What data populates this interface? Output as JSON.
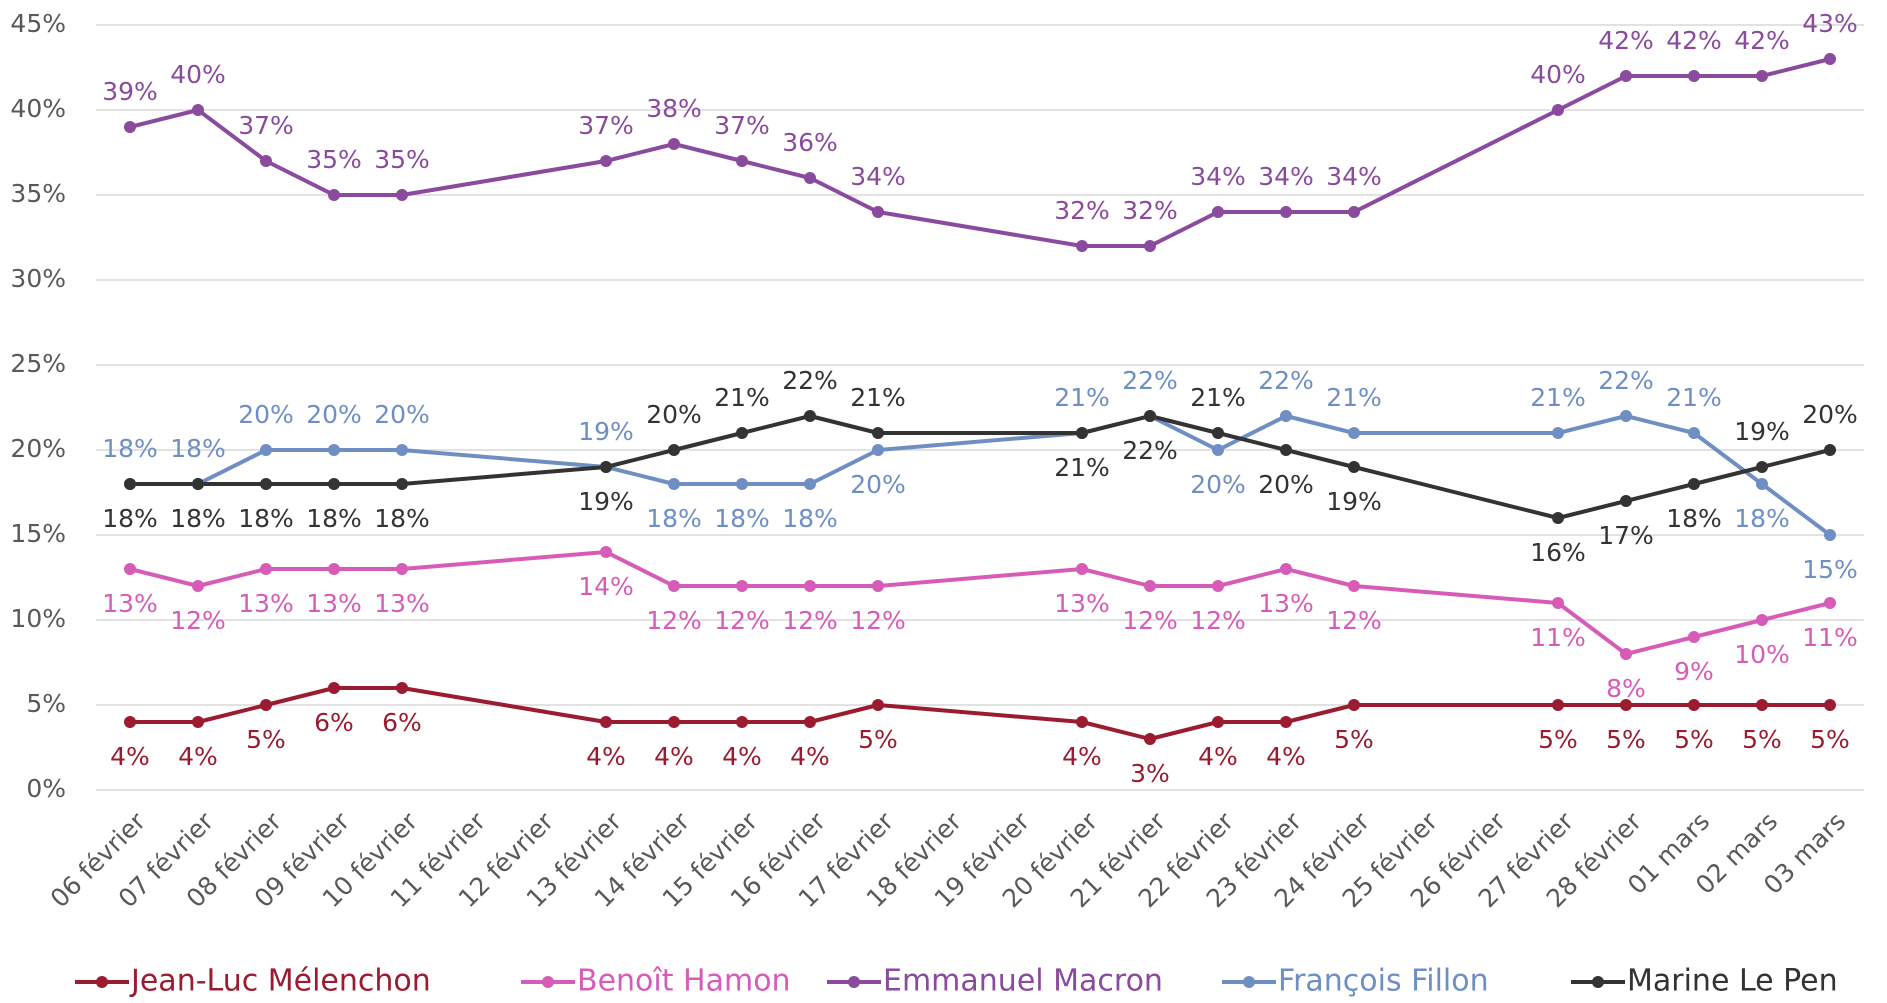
{
  "chart_data": {
    "type": "line",
    "categories": [
      "06 février",
      "07 février",
      "08 février",
      "09 février",
      "10 février",
      "11 février",
      "12 février",
      "13 février",
      "14 février",
      "15 février",
      "16 février",
      "17 février",
      "18 février",
      "19 février",
      "20 février",
      "21 février",
      "22 février",
      "23 février",
      "24 février",
      "25 février",
      "26 février",
      "27 février",
      "28 février",
      "01 mars",
      "02 mars",
      "03 mars"
    ],
    "series": [
      {
        "name": "Jean-Luc Mélenchon",
        "color": "#9b1b30",
        "values": [
          4,
          4,
          5,
          6,
          6,
          null,
          null,
          4,
          4,
          4,
          4,
          5,
          null,
          null,
          4,
          3,
          4,
          4,
          5,
          null,
          null,
          5,
          5,
          5,
          5,
          5
        ],
        "value_labels": [
          "4%",
          "4%",
          "5%",
          "6%",
          "6%",
          null,
          null,
          "4%",
          "4%",
          "4%",
          "4%",
          "5%",
          null,
          null,
          "4%",
          "3%",
          "4%",
          "4%",
          "5%",
          null,
          null,
          "5%",
          "5%",
          "5%",
          "5%",
          "5%"
        ]
      },
      {
        "name": "Benoît Hamon",
        "color": "#d65cb8",
        "values": [
          13,
          12,
          13,
          13,
          13,
          null,
          null,
          14,
          12,
          12,
          12,
          12,
          null,
          null,
          13,
          12,
          12,
          13,
          12,
          null,
          null,
          11,
          8,
          9,
          10,
          11
        ],
        "value_labels": [
          "13%",
          "12%",
          "13%",
          "13%",
          "13%",
          null,
          null,
          "14%",
          "12%",
          "12%",
          "12%",
          "12%",
          null,
          null,
          "13%",
          "12%",
          "12%",
          "13%",
          "12%",
          null,
          null,
          "11%",
          "8%",
          "9%",
          "10%",
          "11%"
        ]
      },
      {
        "name": "Emmanuel Macron",
        "color": "#8a4a9e",
        "values": [
          39,
          40,
          37,
          35,
          35,
          null,
          null,
          37,
          38,
          37,
          36,
          34,
          null,
          null,
          32,
          32,
          34,
          34,
          34,
          null,
          null,
          40,
          42,
          42,
          42,
          43
        ],
        "value_labels": [
          "39%",
          "40%",
          "37%",
          "35%",
          "35%",
          null,
          null,
          "37%",
          "38%",
          "37%",
          "36%",
          "34%",
          null,
          null,
          "32%",
          "32%",
          "34%",
          "34%",
          "34%",
          null,
          null,
          "40%",
          "42%",
          "42%",
          "42%",
          "43%"
        ]
      },
      {
        "name": "François Fillon",
        "color": "#6f8fc4",
        "values": [
          18,
          18,
          20,
          20,
          20,
          null,
          null,
          19,
          18,
          18,
          18,
          20,
          null,
          null,
          21,
          22,
          20,
          22,
          21,
          null,
          null,
          21,
          22,
          21,
          18,
          15
        ],
        "value_labels": [
          "18%",
          "18%",
          "20%",
          "20%",
          "20%",
          null,
          null,
          "19%",
          "18%",
          "18%",
          "18%",
          "20%",
          null,
          null,
          "21%",
          "22%",
          "20%",
          "22%",
          "21%",
          null,
          null,
          "21%",
          "22%",
          "21%",
          "18%",
          "15%"
        ]
      },
      {
        "name": "Marine Le Pen",
        "color": "#333333",
        "values": [
          18,
          18,
          18,
          18,
          18,
          null,
          null,
          19,
          20,
          21,
          22,
          21,
          null,
          null,
          21,
          22,
          21,
          20,
          19,
          null,
          null,
          16,
          17,
          18,
          19,
          20
        ],
        "value_labels": [
          "18%",
          "18%",
          "18%",
          "18%",
          "18%",
          null,
          null,
          "19%",
          "20%",
          "21%",
          "22%",
          "21%",
          null,
          null,
          "21%",
          "22%",
          "21%",
          "20%",
          "19%",
          null,
          null,
          "16%",
          "17%",
          "18%",
          "19%",
          "20%"
        ]
      }
    ],
    "ylim": [
      0,
      45
    ],
    "yticks": [
      {
        "value": 0,
        "label": "0%"
      },
      {
        "value": 5,
        "label": "5%"
      },
      {
        "value": 10,
        "label": "10%"
      },
      {
        "value": 15,
        "label": "15%"
      },
      {
        "value": 20,
        "label": "20%"
      },
      {
        "value": 25,
        "label": "25%"
      },
      {
        "value": 30,
        "label": "30%"
      },
      {
        "value": 35,
        "label": "35%"
      },
      {
        "value": 40,
        "label": "40%"
      },
      {
        "value": 45,
        "label": "45%"
      }
    ],
    "grid": true,
    "legend": "bottom"
  }
}
